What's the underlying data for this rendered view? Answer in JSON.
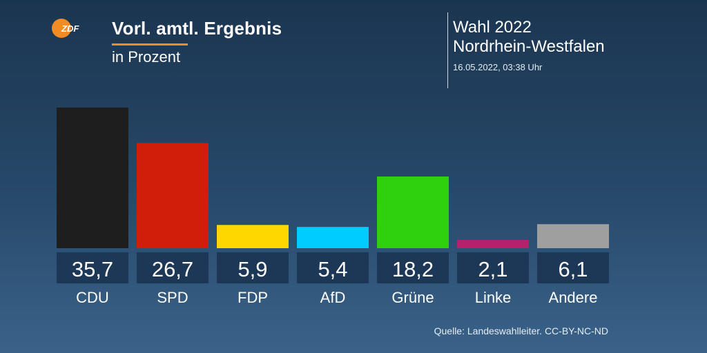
{
  "header": {
    "title": "Vorl. amtl. Ergebnis",
    "subtitle": "in Prozent",
    "election": "Wahl 2022",
    "region": "Nordrhein-Westfalen",
    "timestamp": "16.05.2022, 03:38 Uhr",
    "logo_text": "ZDF"
  },
  "colors": {
    "accent": "#f18b23",
    "value_box": "#1d3856"
  },
  "chart_data": {
    "type": "bar",
    "categories": [
      "CDU",
      "SPD",
      "FDP",
      "AfD",
      "Grüne",
      "Linke",
      "Andere"
    ],
    "values": [
      35.7,
      26.7,
      5.9,
      5.4,
      18.2,
      2.1,
      6.1
    ],
    "value_labels": [
      "35,7",
      "26,7",
      "5,9",
      "5,4",
      "18,2",
      "2,1",
      "6,1"
    ],
    "colors": [
      "#1e1e1e",
      "#d11e0a",
      "#ffd700",
      "#00ccff",
      "#2fd10e",
      "#b3226b",
      "#9f9f9f"
    ],
    "title": "Vorl. amtl. Ergebnis",
    "ylabel": "",
    "ylim": [
      0,
      35.7
    ],
    "grid": false
  },
  "footer": {
    "source": "Quelle: Landeswahlleiter. CC-BY-NC-ND"
  }
}
